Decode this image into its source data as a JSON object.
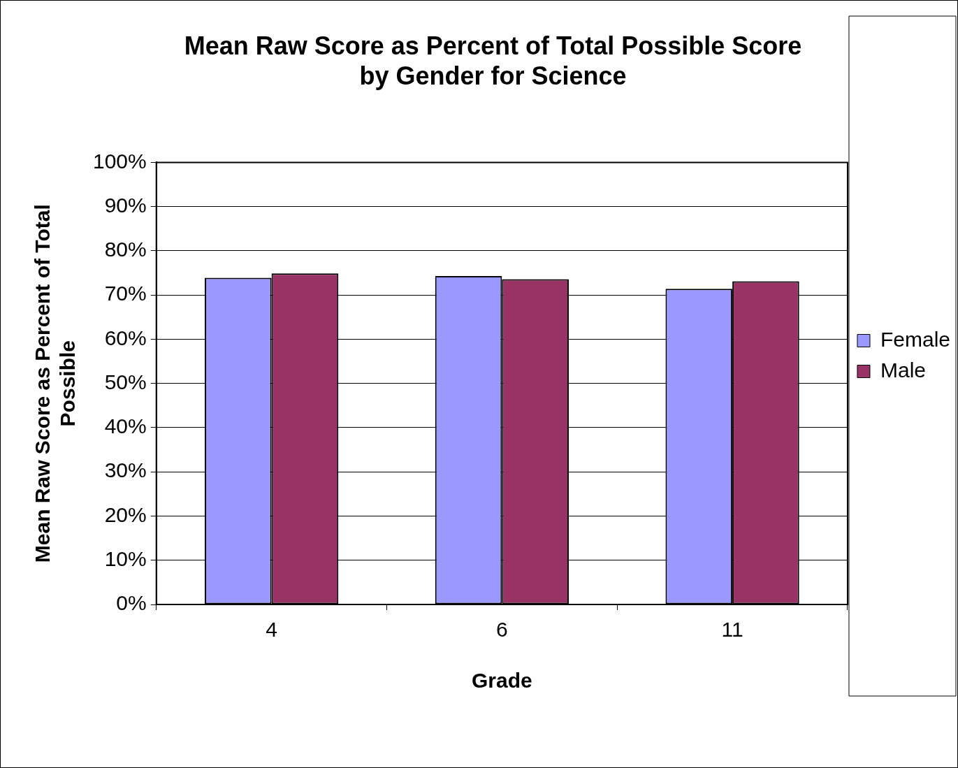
{
  "chart_data": {
    "type": "bar",
    "title": [
      "Mean Raw Score as Percent of Total Possible Score",
      "by Gender for Science"
    ],
    "xlabel": "Grade",
    "ylabel": [
      "Mean Raw Score as Percent of Total",
      "Possible"
    ],
    "categories": [
      "4",
      "6",
      "11"
    ],
    "series": [
      {
        "name": "Female",
        "color": "#9999ff",
        "values": [
          73.9,
          74.3,
          71.4
        ]
      },
      {
        "name": "Male",
        "color": "#993366",
        "values": [
          74.9,
          73.6,
          73.1
        ]
      }
    ],
    "ylim": [
      0,
      100
    ],
    "yticks": [
      {
        "value": 0,
        "label": "0%"
      },
      {
        "value": 10,
        "label": "10%"
      },
      {
        "value": 20,
        "label": "20%"
      },
      {
        "value": 30,
        "label": "30%"
      },
      {
        "value": 40,
        "label": "40%"
      },
      {
        "value": 50,
        "label": "50%"
      },
      {
        "value": 60,
        "label": "60%"
      },
      {
        "value": 70,
        "label": "70%"
      },
      {
        "value": 80,
        "label": "80%"
      },
      {
        "value": 90,
        "label": "90%"
      },
      {
        "value": 100,
        "label": "100%"
      }
    ],
    "grid": "y",
    "legend": "right"
  }
}
